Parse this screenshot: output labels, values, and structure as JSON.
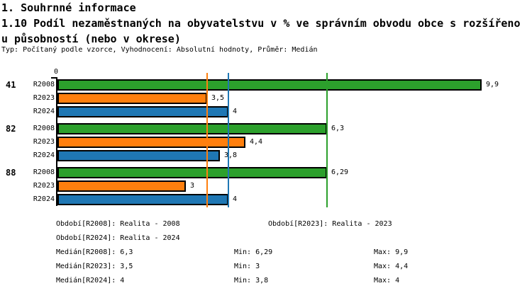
{
  "header": {
    "section": "1. Souhrnné informace",
    "title_line1": "1.10 Podíl nezaměstnaných na obyvatelstvu v % ve správním obvodu obce s rozšířeno",
    "title_line2": "u působností (nebo v okrese)",
    "subtitle": "Typ: Počítaný podle vzorce, Vyhodnocení: Absolutní hodnoty, Průměr: Medián"
  },
  "chart_data": {
    "type": "bar",
    "orientation": "horizontal",
    "origin_label": "0",
    "categories": [
      "41",
      "82",
      "88"
    ],
    "series": [
      {
        "name": "R2008",
        "color": "#2CA02C",
        "values": [
          9.9,
          6.3,
          6.29
        ],
        "labels": [
          "9,9",
          "6,3",
          "6,29"
        ],
        "median": 6.3
      },
      {
        "name": "R2023",
        "color": "#FF7F0E",
        "values": [
          3.5,
          4.4,
          3
        ],
        "labels": [
          "3,5",
          "4,4",
          "3"
        ],
        "median": 3.5
      },
      {
        "name": "R2024",
        "color": "#1F77B4",
        "values": [
          4,
          3.8,
          4
        ],
        "labels": [
          "4",
          "3,8",
          "4"
        ],
        "median": 4
      }
    ],
    "xlim": [
      0,
      9.9
    ],
    "grid": "median-lines-only",
    "median_lines": [
      {
        "series": "R2023",
        "value": 3.5,
        "color": "#FF7F0E"
      },
      {
        "series": "R2024",
        "value": 4,
        "color": "#1F77B4"
      },
      {
        "series": "R2008",
        "value": 6.3,
        "color": "#2CA02C"
      }
    ]
  },
  "legend": {
    "periods": [
      {
        "label": "Období[R2008]: Realita - 2008"
      },
      {
        "label": "Období[R2023]: Realita - 2023"
      },
      {
        "label": "Období[R2024]: Realita - 2024"
      }
    ],
    "stats": [
      {
        "median": "Medián[R2008]: 6,3",
        "min": "Min: 6,29",
        "max": "Max: 9,9"
      },
      {
        "median": "Medián[R2023]: 3,5",
        "min": "Min: 3",
        "max": "Max: 4,4"
      },
      {
        "median": "Medián[R2024]: 4",
        "min": "Min: 3,8",
        "max": "Max: 4"
      }
    ]
  }
}
